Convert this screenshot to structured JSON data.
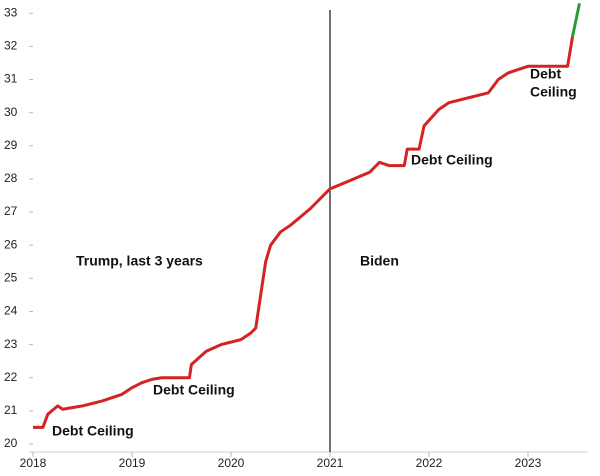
{
  "chart_data": {
    "type": "line",
    "xlim": [
      2018,
      2023.6
    ],
    "xticks": [
      2018,
      2019,
      2020,
      2021,
      2022,
      2023
    ],
    "ylim": [
      20,
      33.4
    ],
    "yticks": [
      20,
      21,
      22,
      23,
      24,
      25,
      26,
      27,
      28,
      29,
      30,
      31,
      32,
      33
    ],
    "vline": 2021,
    "series": [
      {
        "color": "#d42323",
        "x": [
          2018.0,
          2018.1,
          2018.15,
          2018.25,
          2018.3,
          2018.5,
          2018.7,
          2018.9,
          2019.0,
          2019.1,
          2019.2,
          2019.3,
          2019.58,
          2019.6,
          2019.75,
          2019.9,
          2020.1,
          2020.2,
          2020.25,
          2020.3,
          2020.35,
          2020.4,
          2020.5,
          2020.6,
          2020.8,
          2021.0,
          2021.2,
          2021.4,
          2021.5,
          2021.6,
          2021.75,
          2021.78,
          2021.9,
          2021.95,
          2022.1,
          2022.2,
          2022.4,
          2022.6,
          2022.7,
          2022.8,
          2022.9,
          2023.0,
          2023.4,
          2023.45
        ],
        "values": [
          20.5,
          20.5,
          20.9,
          21.15,
          21.05,
          21.15,
          21.3,
          21.5,
          21.7,
          21.85,
          21.95,
          22.0,
          22.0,
          22.4,
          22.8,
          23.0,
          23.15,
          23.35,
          23.5,
          24.5,
          25.5,
          26.0,
          26.4,
          26.6,
          27.1,
          27.7,
          27.95,
          28.2,
          28.5,
          28.4,
          28.4,
          28.9,
          28.9,
          29.6,
          30.1,
          30.3,
          30.45,
          30.6,
          31.0,
          31.2,
          31.3,
          31.4,
          31.4,
          32.3
        ]
      },
      {
        "color": "#2a9d3a",
        "x": [
          2023.45,
          2023.52
        ],
        "values": [
          32.3,
          33.3
        ]
      }
    ],
    "annotations": [
      "Debt Ceiling",
      "Debt Ceiling",
      "Debt Ceiling",
      "Debt",
      "Ceiling",
      "Trump, last 3 years",
      "Biden"
    ]
  }
}
